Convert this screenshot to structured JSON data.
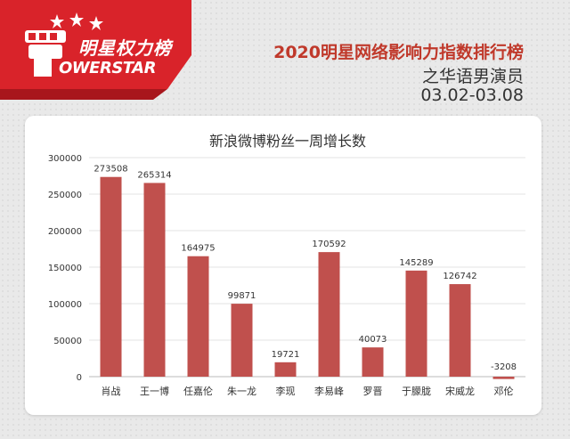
{
  "logo": {
    "cn_text": "明星权力榜",
    "en_text": "OWERSTAR",
    "brand_color": "#d9232a"
  },
  "header": {
    "title": "2020明星网络影响力指数排行榜",
    "subtitle": "之华语男演员",
    "date_range": "03.02-03.08",
    "title_color": "#c0392b"
  },
  "chart_data": {
    "type": "bar",
    "title": "新浪微博粉丝一周增长数",
    "categories": [
      "肖战",
      "王一博",
      "任嘉伦",
      "朱一龙",
      "李现",
      "李易峰",
      "罗晋",
      "于朦胧",
      "宋威龙",
      "邓伦"
    ],
    "values": [
      273508,
      265314,
      164975,
      99871,
      19721,
      170592,
      40073,
      145289,
      126742,
      -3208
    ],
    "data_labels": [
      "273508",
      "265314",
      "164975",
      "99871",
      "19721",
      "170592",
      "40073",
      "145289",
      "126742",
      "-3208"
    ],
    "yticks": [
      "0",
      "50000",
      "100000",
      "150000",
      "200000",
      "250000",
      "300000"
    ],
    "ylim": [
      0,
      300000
    ],
    "grid": true,
    "bar_color": "#c0504d"
  }
}
